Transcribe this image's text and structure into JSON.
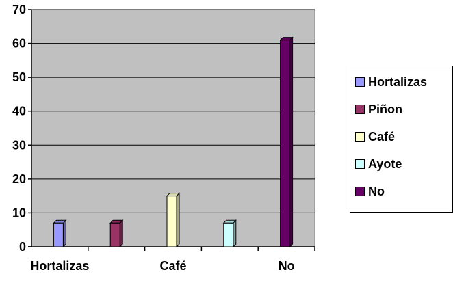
{
  "chart_data": {
    "type": "bar",
    "categories": [
      "Hortalizas",
      "Piñon",
      "Café",
      "Ayote",
      "No"
    ],
    "visible_tick_labels": [
      "Hortalizas",
      "Café",
      "No"
    ],
    "values": [
      7,
      7,
      15,
      7,
      61
    ],
    "ylim": [
      0,
      70
    ],
    "yticks": [
      "0",
      "10",
      "20",
      "30",
      "40",
      "50",
      "60",
      "70"
    ],
    "grid": true,
    "legend_position": "right",
    "series_colors": [
      "#9999ff",
      "#993366",
      "#ffffcc",
      "#ccffff",
      "#660066"
    ],
    "plot_background": "#c0c0c0"
  },
  "legend": {
    "items": [
      {
        "label": "Hortalizas",
        "color": "#9999ff"
      },
      {
        "label": "Piñon",
        "color": "#993366"
      },
      {
        "label": "Café",
        "color": "#ffffcc"
      },
      {
        "label": "Ayote",
        "color": "#ccffff"
      },
      {
        "label": "No",
        "color": "#660066"
      }
    ]
  }
}
